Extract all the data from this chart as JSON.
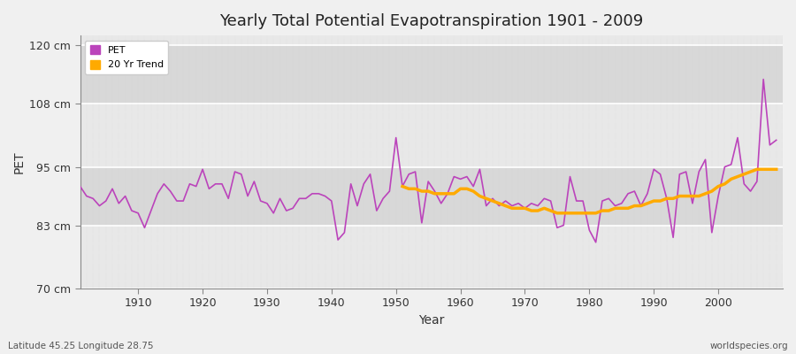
{
  "title": "Yearly Total Potential Evapotranspiration 1901 - 2009",
  "xlabel": "Year",
  "ylabel": "PET",
  "footnote_left": "Latitude 45.25 Longitude 28.75",
  "footnote_right": "worldspecies.org",
  "ylim": [
    70,
    122
  ],
  "yticks": [
    70,
    83,
    95,
    108,
    120
  ],
  "ytick_labels": [
    "70 cm",
    "83 cm",
    "95 cm",
    "108 cm",
    "120 cm"
  ],
  "pet_color": "#bb44bb",
  "trend_color": "#ffaa00",
  "bg_color": "#f0f0f0",
  "band_colors": [
    "#e8e8e8",
    "#d8d8d8"
  ],
  "grid_color": "#ffffff",
  "grid_minor_color": "#e0e0e0",
  "years": [
    1901,
    1902,
    1903,
    1904,
    1905,
    1906,
    1907,
    1908,
    1909,
    1910,
    1911,
    1912,
    1913,
    1914,
    1915,
    1916,
    1917,
    1918,
    1919,
    1920,
    1921,
    1922,
    1923,
    1924,
    1925,
    1926,
    1927,
    1928,
    1929,
    1930,
    1931,
    1932,
    1933,
    1934,
    1935,
    1936,
    1937,
    1938,
    1939,
    1940,
    1941,
    1942,
    1943,
    1944,
    1945,
    1946,
    1947,
    1948,
    1949,
    1950,
    1951,
    1952,
    1953,
    1954,
    1955,
    1956,
    1957,
    1958,
    1959,
    1960,
    1961,
    1962,
    1963,
    1964,
    1965,
    1966,
    1967,
    1968,
    1969,
    1970,
    1971,
    1972,
    1973,
    1974,
    1975,
    1976,
    1977,
    1978,
    1979,
    1980,
    1981,
    1982,
    1983,
    1984,
    1985,
    1986,
    1987,
    1988,
    1989,
    1990,
    1991,
    1992,
    1993,
    1994,
    1995,
    1996,
    1997,
    1998,
    1999,
    2000,
    2001,
    2002,
    2003,
    2004,
    2005,
    2006,
    2007,
    2008,
    2009
  ],
  "pet_values": [
    91.0,
    89.0,
    88.5,
    87.0,
    88.0,
    90.5,
    87.5,
    89.0,
    86.0,
    85.5,
    82.5,
    86.0,
    89.5,
    91.5,
    90.0,
    88.0,
    88.0,
    91.5,
    91.0,
    94.5,
    90.5,
    91.5,
    91.5,
    88.5,
    94.0,
    93.5,
    89.0,
    92.0,
    88.0,
    87.5,
    85.5,
    88.5,
    86.0,
    86.5,
    88.5,
    88.5,
    89.5,
    89.5,
    89.0,
    88.0,
    80.0,
    81.5,
    91.5,
    87.0,
    91.5,
    93.5,
    86.0,
    88.5,
    90.0,
    101.0,
    91.0,
    93.5,
    94.0,
    83.5,
    92.0,
    90.0,
    87.5,
    89.5,
    93.0,
    92.5,
    93.0,
    91.0,
    94.5,
    87.0,
    88.5,
    87.0,
    88.0,
    87.0,
    87.5,
    86.5,
    87.5,
    87.0,
    88.5,
    88.0,
    82.5,
    83.0,
    93.0,
    88.0,
    88.0,
    82.0,
    79.5,
    88.0,
    88.5,
    87.0,
    87.5,
    89.5,
    90.0,
    87.0,
    89.5,
    94.5,
    93.5,
    88.5,
    80.5,
    93.5,
    94.0,
    87.5,
    94.0,
    96.5,
    81.5,
    89.0,
    95.0,
    95.5,
    101.0,
    91.5,
    90.0,
    92.0,
    113.0,
    99.5,
    100.5
  ],
  "trend_values_years": [
    1951,
    1952,
    1953,
    1954,
    1955,
    1956,
    1957,
    1958,
    1959,
    1960,
    1961,
    1962,
    1963,
    1964,
    1965,
    1966,
    1967,
    1968,
    1969,
    1970,
    1971,
    1972,
    1973,
    1974,
    1975,
    1976,
    1977,
    1978,
    1979,
    1980,
    1981,
    1982,
    1983,
    1984,
    1985,
    1986,
    1987,
    1988,
    1989,
    1990,
    1991,
    1992,
    1993,
    1994,
    1995,
    1996,
    1997,
    1998,
    1999,
    2000,
    2001,
    2002,
    2003,
    2004,
    2005,
    2006,
    2007,
    2008,
    2009
  ],
  "trend_values": [
    91.0,
    90.5,
    90.5,
    90.0,
    90.0,
    89.5,
    89.5,
    89.5,
    89.5,
    90.5,
    90.5,
    90.0,
    89.0,
    88.5,
    88.0,
    87.5,
    87.0,
    86.5,
    86.5,
    86.5,
    86.0,
    86.0,
    86.5,
    86.0,
    85.5,
    85.5,
    85.5,
    85.5,
    85.5,
    85.5,
    85.5,
    86.0,
    86.0,
    86.5,
    86.5,
    86.5,
    87.0,
    87.0,
    87.5,
    88.0,
    88.0,
    88.5,
    88.5,
    89.0,
    89.0,
    89.0,
    89.0,
    89.5,
    90.0,
    91.0,
    91.5,
    92.5,
    93.0,
    93.5,
    94.0,
    94.5,
    94.5,
    94.5,
    94.5
  ],
  "xlim": [
    1901,
    2010
  ],
  "xticks": [
    1910,
    1920,
    1930,
    1940,
    1950,
    1960,
    1970,
    1980,
    1990,
    2000
  ]
}
